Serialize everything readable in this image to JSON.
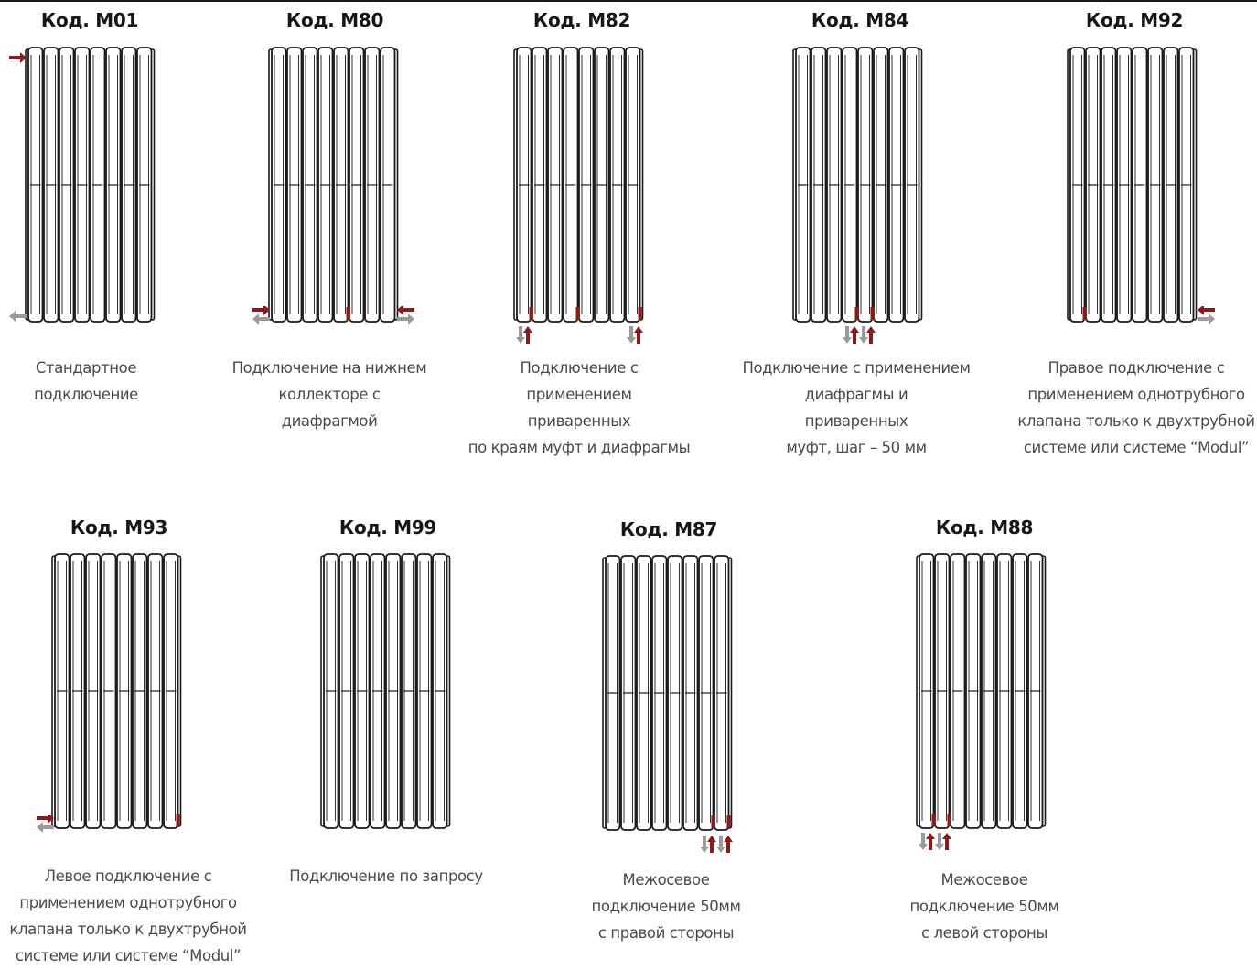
{
  "colors": {
    "supply": "#8b1a1a",
    "return": "#9a9a9a",
    "outline": "#1a1a1a",
    "caption": "#4a4a4a"
  },
  "options": [
    {
      "code": "Код. М01",
      "description": "Стандартное\nподключение",
      "icon": "radiator-icon"
    },
    {
      "code": "Код. М80",
      "description": "Подключение на нижнем\nколлекторе с\nдиафрагмой",
      "icon": "radiator-icon"
    },
    {
      "code": "Код. М82",
      "description": "Подключение с\nприменением\nприваренных\nпо краям муфт и диафрагмы",
      "icon": "radiator-icon"
    },
    {
      "code": "Код. М84",
      "description": "Подключение с применением\nдиафрагмы и\nприваренных\nмуфт, шаг – 50 мм",
      "icon": "radiator-icon"
    },
    {
      "code": "Код. М92",
      "description": "Правое подключение с\nприменением однотрубного\nклапана только к двухтрубной\nсистеме или системе “Modul”",
      "icon": "radiator-icon"
    },
    {
      "code": "Код. М93",
      "description": "Левое подключение с\nприменением однотрубного\nклапана только к двухтрубной\nсистеме или системе “Modul”",
      "icon": "radiator-icon"
    },
    {
      "code": "Код. М99",
      "description": "Подключение по запросу",
      "icon": "radiator-icon"
    },
    {
      "code": "Код. М87",
      "description": "Межосевое\nподключение 50мм\nс правой стороны",
      "icon": "radiator-icon"
    },
    {
      "code": "Код. М88",
      "description": "Межосевое\nподключение 50мм\nс левой стороны",
      "icon": "radiator-icon"
    }
  ]
}
